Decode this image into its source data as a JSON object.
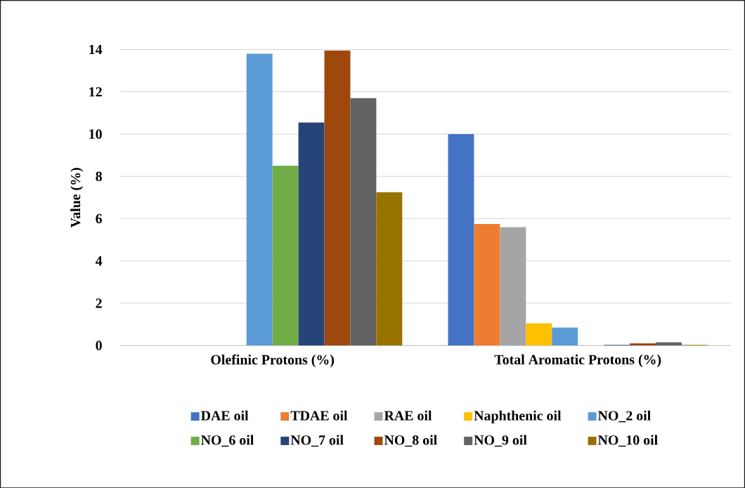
{
  "chart_data": {
    "type": "bar",
    "ylabel": "Value (%)",
    "categories": [
      "Olefinic Protons (%)",
      "Total Aromatic Protons (%)"
    ],
    "series": [
      {
        "name": "DAE oil",
        "color": "#4472c4",
        "values": [
          0,
          10.0
        ]
      },
      {
        "name": "TDAE oil",
        "color": "#ed7d31",
        "values": [
          0,
          5.75
        ]
      },
      {
        "name": "RAE oil",
        "color": "#a5a5a5",
        "values": [
          0,
          5.6
        ]
      },
      {
        "name": "Naphthenic oil",
        "color": "#ffc000",
        "values": [
          0,
          1.05
        ]
      },
      {
        "name": "NO_2 oil",
        "color": "#5b9bd5",
        "values": [
          13.8,
          0.85
        ]
      },
      {
        "name": "NO_6 oil",
        "color": "#70ad47",
        "values": [
          8.5,
          0
        ]
      },
      {
        "name": "NO_7 oil",
        "color": "#264478",
        "values": [
          10.55,
          0.03
        ]
      },
      {
        "name": "NO_8 oil",
        "color": "#9e480e",
        "values": [
          13.95,
          0.1
        ]
      },
      {
        "name": "NO_9 oil",
        "color": "#636363",
        "values": [
          11.7,
          0.15
        ]
      },
      {
        "name": "NO_10 oil",
        "color": "#997300",
        "values": [
          7.25,
          0.03
        ]
      }
    ],
    "ylim": [
      0,
      14
    ],
    "yticks": [
      0,
      2,
      4,
      6,
      8,
      10,
      12,
      14
    ],
    "grid": "y",
    "legend": "bottom"
  }
}
